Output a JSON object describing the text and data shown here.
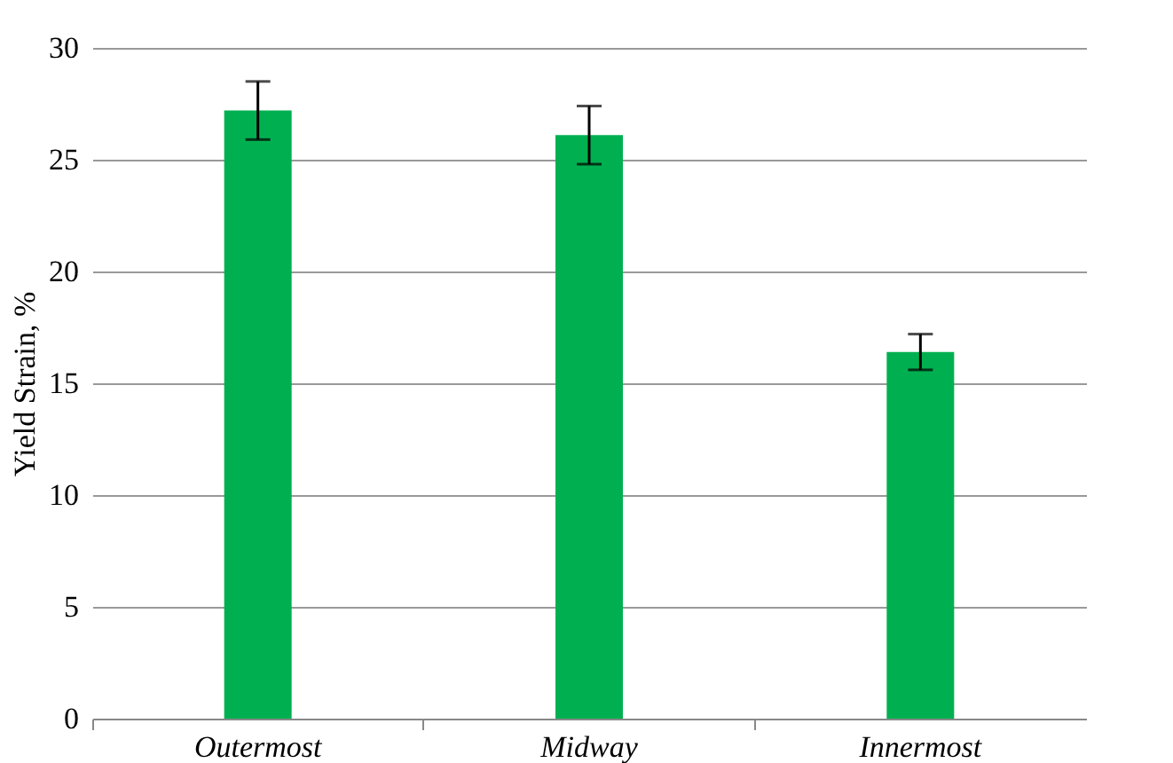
{
  "chart_data": {
    "type": "bar",
    "ylabel": "Yield Strain, %",
    "categories": [
      "Outermost",
      "Midway",
      "Innermost"
    ],
    "values": [
      27.2,
      26.1,
      16.4
    ],
    "errors": [
      1.3,
      1.3,
      0.8
    ],
    "color": "#00b050",
    "ylim": [
      0,
      30
    ],
    "yticks": [
      0,
      5,
      10,
      15,
      20,
      25,
      30
    ],
    "grid": "y"
  }
}
